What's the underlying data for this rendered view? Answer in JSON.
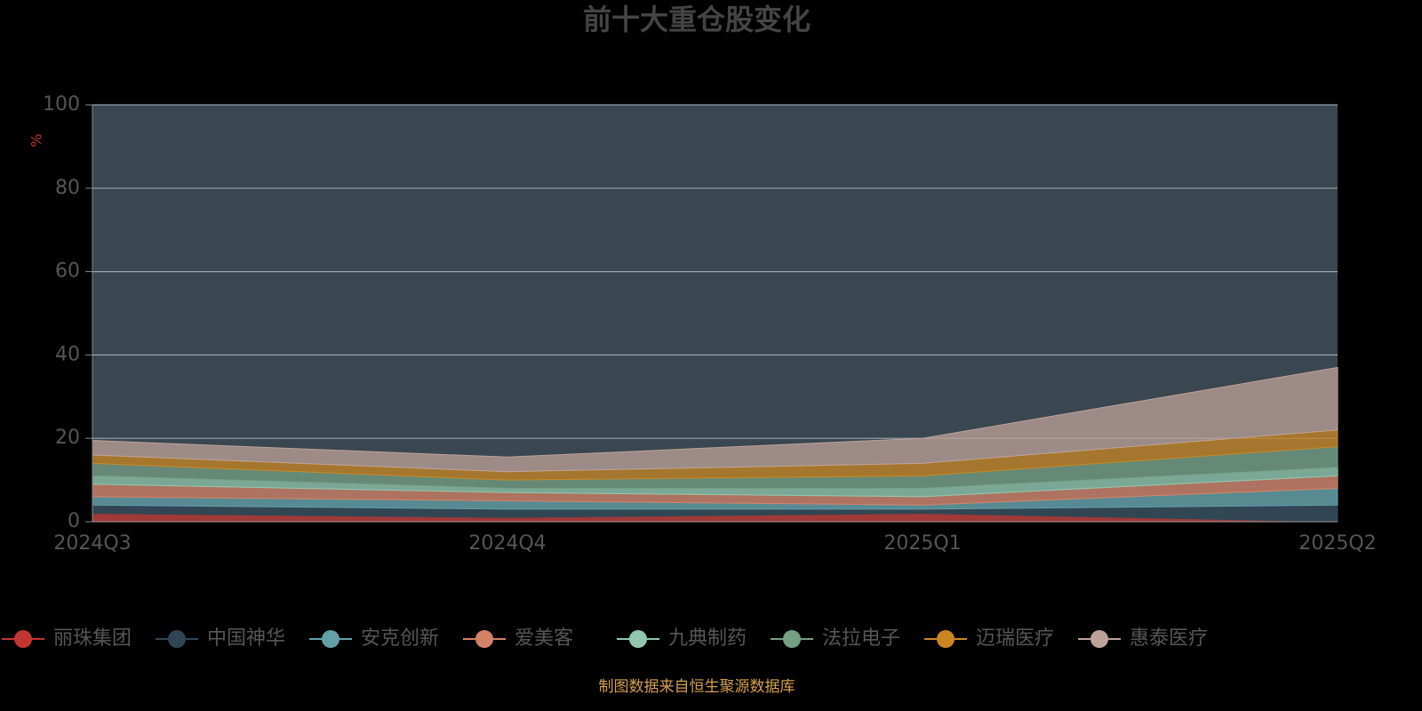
{
  "chart_data": {
    "type": "stacked_area",
    "title": "前十大重仓股变化",
    "y_label": "%",
    "categories": [
      "2024Q3",
      "2024Q4",
      "2025Q1",
      "2025Q2"
    ],
    "ylim": [
      0,
      100
    ],
    "yticks": [
      0,
      20,
      40,
      60,
      80,
      100
    ],
    "grid": true,
    "series": [
      {
        "name": "丽珠集团",
        "color": "#c23531",
        "values": [
          2,
          1,
          2,
          0
        ]
      },
      {
        "name": "中国神华",
        "color": "#2f4554",
        "values": [
          2,
          2,
          1,
          4
        ]
      },
      {
        "name": "安克创新",
        "color": "#61a0a8",
        "values": [
          2,
          2,
          1,
          4
        ]
      },
      {
        "name": "爱美客",
        "color": "#d48265",
        "values": [
          3,
          2,
          2,
          3
        ]
      },
      {
        "name": "九典制药",
        "color": "#91c7ae",
        "values": [
          2,
          1,
          2,
          2
        ]
      },
      {
        "name": "法拉电子",
        "color": "#749f83",
        "values": [
          3,
          2,
          3,
          5
        ]
      },
      {
        "name": "迈瑞医疗",
        "color": "#ca8622",
        "values": [
          2,
          2,
          3,
          4
        ]
      },
      {
        "name": "惠泰医疗",
        "color": "#bda29a",
        "values": [
          3.5,
          3.5,
          6,
          15
        ]
      }
    ],
    "note": "制图数据来自恒生聚源数据库"
  }
}
